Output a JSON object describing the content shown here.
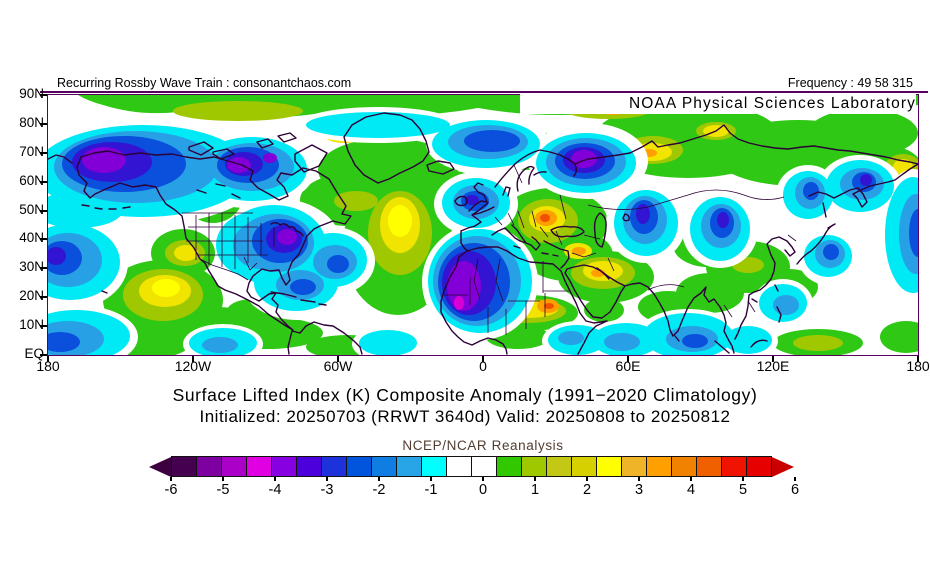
{
  "header": {
    "left_text": "Recurring Rossby Wave Train : consonantchaos.com",
    "frequency_label": "Frequency : 49 58 315",
    "org_label": "NOAA Physical Sciences Laboratory"
  },
  "titles": {
    "line1": "Surface Lifted Index (K) Composite Anomaly (1991−2020 Climatology)",
    "line2": "Initialized: 20250703 (RRWT 3640d) Valid: 20250808 to 20250812",
    "dataset": "NCEP/NCAR Reanalysis"
  },
  "map": {
    "lat_labels": [
      "90N",
      "80N",
      "70N",
      "60N",
      "50N",
      "40N",
      "30N",
      "20N",
      "10N",
      "EQ"
    ],
    "lon_labels": [
      "180",
      "120W",
      "60W",
      "0",
      "60E",
      "120E",
      "180"
    ]
  },
  "colorbar": {
    "tick_labels": [
      "-6",
      "-5",
      "-4",
      "-3",
      "-2",
      "-1",
      "0",
      "1",
      "2",
      "3",
      "4",
      "5",
      "6"
    ],
    "cells": [
      "#460050",
      "#7d00a0",
      "#aa00c8",
      "#e100e1",
      "#8700e1",
      "#4b00dc",
      "#1e32dc",
      "#0055dc",
      "#0f7de1",
      "#28a5e6",
      "#00ffff",
      "#ffffff",
      "#ffffff",
      "#32c800",
      "#a0c800",
      "#c3c814",
      "#d7d000",
      "#ffff00",
      "#f0b428",
      "#ffa000",
      "#f08200",
      "#f05f00",
      "#f01400",
      "#e60000"
    ],
    "left_arrow_color": "#3c0041",
    "right_arrow_color": "#c80000"
  },
  "colors": {
    "frame": "#57005f",
    "rule": "#57005f",
    "coastline": "#2d0038"
  },
  "chart_data": {
    "type": "heatmap",
    "variable": "Surface Lifted Index composite anomaly",
    "units": "K",
    "title": "Surface Lifted Index (K) Composite Anomaly (1991−2020 Climatology)",
    "subtitle": "Initialized: 20250703 (RRWT 3640d) Valid: 20250808 to 20250812",
    "dataset": "NCEP/NCAR Reanalysis",
    "projection": "equirectangular",
    "lon_range": [
      "180W",
      "180E"
    ],
    "lat_range": [
      "EQ",
      "90N"
    ],
    "colorbar_scale": {
      "min": -6,
      "max": 6,
      "step": 0.5,
      "tick_values": [
        -6,
        -5,
        -4,
        -3,
        -2,
        -1,
        0,
        1,
        2,
        3,
        4,
        5,
        6
      ]
    },
    "notable_anomalies": [
      {
        "region": "Interior Alaska",
        "value_k": -4.5
      },
      {
        "region": "Canadian Arctic (Victoria Island area)",
        "value_k": -4.5
      },
      {
        "region": "Northeastern United States / Great Lakes",
        "value_k": -4
      },
      {
        "region": "Central US plains",
        "value_k": -2
      },
      {
        "region": "Offshore California",
        "value_k": 2.5
      },
      {
        "region": "Central North Pacific ridge",
        "value_k": 2
      },
      {
        "region": "Date-line North Pacific (40N)",
        "value_k": -3
      },
      {
        "region": "Mid-Atlantic south of Greenland",
        "value_k": 2.5
      },
      {
        "region": "Subpolar North Atlantic / Norwegian Sea",
        "value_k": -3
      },
      {
        "region": "British Isles / Bay of Biscay",
        "value_k": -3
      },
      {
        "region": "Eastern Europe / Balkans",
        "value_k": 3
      },
      {
        "region": "Barents Sea / Northwest Russia",
        "value_k": -4
      },
      {
        "region": "Northwest Africa (Mauritania-Algeria)",
        "value_k": -5
      },
      {
        "region": "Sahel (Chad / Sudan)",
        "value_k": 3.5
      },
      {
        "region": "Middle East / Iran",
        "value_k": 2.5
      },
      {
        "region": "Central Asia (Aral region)",
        "value_k": -3
      },
      {
        "region": "Mongolia / Northwest China",
        "value_k": -3
      },
      {
        "region": "Sea of Okhotsk / Kamchatka",
        "value_k": -3
      },
      {
        "region": "Siberia (yellow cores)",
        "value_k": 2.5
      },
      {
        "region": "Indian subcontinent / Arabian Sea",
        "value_k": -1.5
      },
      {
        "region": "Caribbean / Gulf of Mexico",
        "value_k": -1.5
      }
    ]
  }
}
